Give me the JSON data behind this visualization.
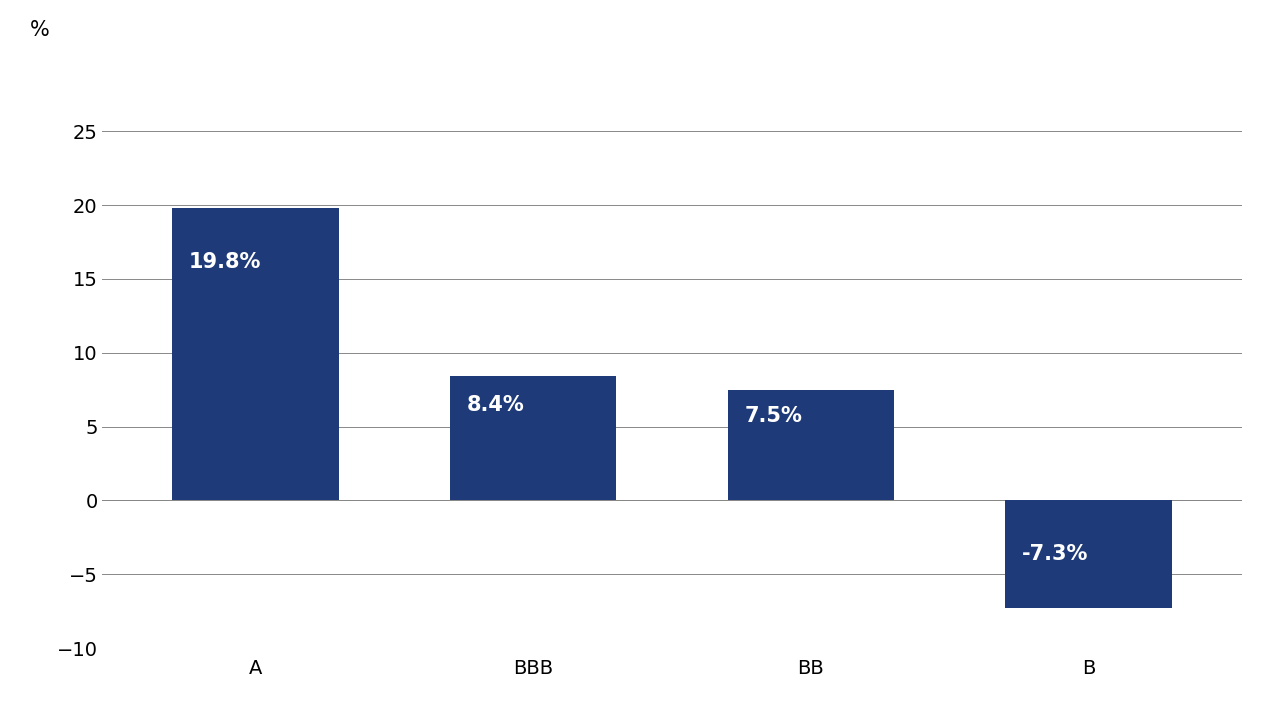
{
  "categories": [
    "A",
    "BBB",
    "BB",
    "B"
  ],
  "values": [
    19.8,
    8.4,
    7.5,
    -7.3
  ],
  "labels": [
    "19.8%",
    "8.4%",
    "7.5%",
    "-7.3%"
  ],
  "bar_color": "#1e3a78",
  "background_color": "#ffffff",
  "ylabel": "%",
  "ylim": [
    -10,
    30
  ],
  "yticks": [
    -10,
    -5,
    0,
    5,
    10,
    15,
    20,
    25
  ],
  "grid_color": "#888888",
  "label_fontsize": 15,
  "tick_fontsize": 14,
  "ylabel_fontsize": 15,
  "bar_width": 0.6,
  "label_color": "#ffffff"
}
